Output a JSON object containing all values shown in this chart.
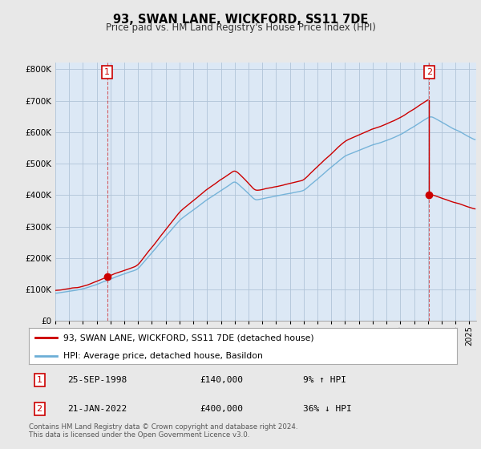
{
  "title": "93, SWAN LANE, WICKFORD, SS11 7DE",
  "subtitle": "Price paid vs. HM Land Registry's House Price Index (HPI)",
  "hpi_color": "#6baed6",
  "price_paid_color": "#cc0000",
  "sale1_date": "25-SEP-1998",
  "sale1_price": 140000,
  "sale1_hpi_pct": "9% ↑ HPI",
  "sale1_label": "1",
  "sale1_year": 1998.73,
  "sale2_date": "21-JAN-2022",
  "sale2_price": 400000,
  "sale2_hpi_pct": "36% ↓ HPI",
  "sale2_label": "2",
  "sale2_year": 2022.05,
  "legend_property": "93, SWAN LANE, WICKFORD, SS11 7DE (detached house)",
  "legend_hpi": "HPI: Average price, detached house, Basildon",
  "footer": "Contains HM Land Registry data © Crown copyright and database right 2024.\nThis data is licensed under the Open Government Licence v3.0.",
  "ylim": [
    0,
    820000
  ],
  "xlim_start": 1995.0,
  "xlim_end": 2025.5,
  "background_color": "#e8e8e8",
  "plot_bg_color": "#dce8f5",
  "grid_color": "#b0c4d8"
}
